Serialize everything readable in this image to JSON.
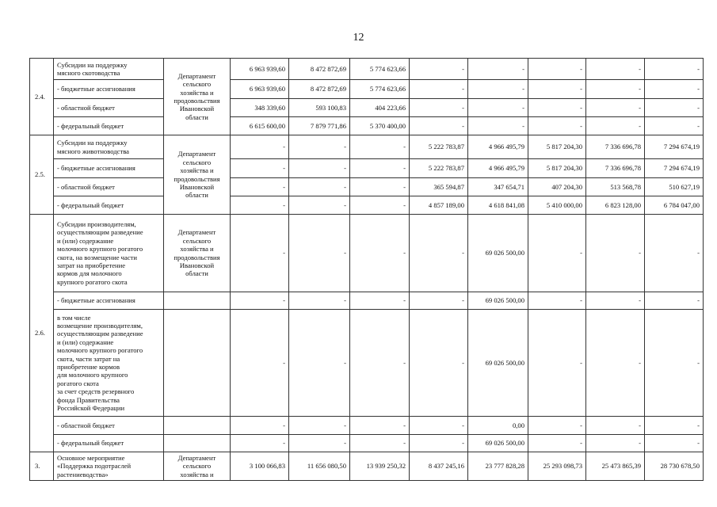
{
  "page_number": "12",
  "groups": [
    {
      "num": "2.4.",
      "dept": "Департамент\nсельского\nхозяйства и\nпродовольствия\nИвановской\nобласти",
      "dept_span": "all",
      "rows": [
        {
          "label": "Субсидии на поддержку\nмясного скотоводства",
          "values": [
            "6 963 939,60",
            "8 472 872,69",
            "5 774 623,66",
            "-",
            "-",
            "-",
            "-",
            "-"
          ]
        },
        {
          "label": "- бюджетные ассигнования",
          "values": [
            "6 963 939,60",
            "8 472 872,69",
            "5 774 623,66",
            "-",
            "-",
            "-",
            "-",
            "-"
          ]
        },
        {
          "label": "- областной бюджет",
          "values": [
            "348 339,60",
            "593 100,83",
            "404 223,66",
            "-",
            "-",
            "-",
            "-",
            "-"
          ]
        },
        {
          "label": "- федеральный бюджет",
          "values": [
            "6 615 600,00",
            "7 879 771,86",
            "5 370 400,00",
            "-",
            "-",
            "-",
            "-",
            "-"
          ]
        }
      ]
    },
    {
      "num": "2.5.",
      "dept": "Департамент\nсельского\nхозяйства и\nпродовольствия\nИвановской\nобласти",
      "dept_span": "all",
      "rows": [
        {
          "label": "Субсидии на поддержку\nмясного животноводства",
          "values": [
            "-",
            "-",
            "-",
            "5 222 783,87",
            "4 966 495,79",
            "5 817 204,30",
            "7 336 696,78",
            "7 294 674,19"
          ]
        },
        {
          "label": "- бюджетные ассигнования",
          "values": [
            "-",
            "-",
            "-",
            "5 222 783,87",
            "4 966 495,79",
            "5 817 204,30",
            "7 336 696,78",
            "7 294 674,19"
          ]
        },
        {
          "label": "- областной бюджет",
          "values": [
            "-",
            "-",
            "-",
            "365 594,87",
            "347 654,71",
            "407 204,30",
            "513 568,78",
            "510 627,19"
          ]
        },
        {
          "label": "- федеральный бюджет",
          "values": [
            "-",
            "-",
            "-",
            "4 857 189,00",
            "4 618 841,08",
            "5 410 000,00",
            "6 823 128,00",
            "6 784 047,00"
          ]
        }
      ]
    },
    {
      "num": "2.6.",
      "dept": "Департамент\nсельского\nхозяйства и\nпродовольствия\nИвановской\nобласти",
      "dept_span": "first",
      "rows": [
        {
          "label": "Субсидии производителям,\nосуществляющим разведение\nи (или) содержание\nмолочного крупного рогатого\nскота, на возмещение части\nзатрат на приобретение\nкормов для молочного\nкрупного рогатого скота",
          "values": [
            "-",
            "-",
            "-",
            "-",
            "69 026 500,00",
            "-",
            "-",
            "-"
          ]
        },
        {
          "label": "- бюджетные ассигнования",
          "values": [
            "-",
            "-",
            "-",
            "-",
            "69 026 500,00",
            "-",
            "-",
            "-"
          ]
        },
        {
          "label": "в том числе\nвозмещение производителям,\nосуществляющим разведение\nи (или) содержание\nмолочного крупного рогатого\nскота, части затрат на\nприобретение кормов\nдля молочного крупного\nрогатого скота\nза счет средств резервного\nфонда Правительства\nРоссийской Федерации",
          "values": [
            "-",
            "-",
            "-",
            "-",
            "69 026 500,00",
            "-",
            "-",
            "-"
          ]
        },
        {
          "label": "- областной бюджет",
          "values": [
            "-",
            "-",
            "-",
            "-",
            "0,00",
            "-",
            "-",
            "-"
          ]
        },
        {
          "label": "- федеральный бюджет",
          "values": [
            "-",
            "-",
            "-",
            "-",
            "69 026 500,00",
            "-",
            "-",
            "-"
          ]
        }
      ]
    },
    {
      "num": "3.",
      "dept": "Департамент\nсельского\nхозяйства и",
      "dept_span": "all",
      "rows": [
        {
          "label": "Основное мероприятие\n«Поддержка подотраслей\nрастениеводства»",
          "values": [
            "3 100 066,83",
            "11 656 080,50",
            "13 939 250,32",
            "8 437 245,16",
            "23 777 828,28",
            "25 293 098,73",
            "25 473 865,39",
            "28 730 678,50"
          ]
        }
      ]
    }
  ]
}
